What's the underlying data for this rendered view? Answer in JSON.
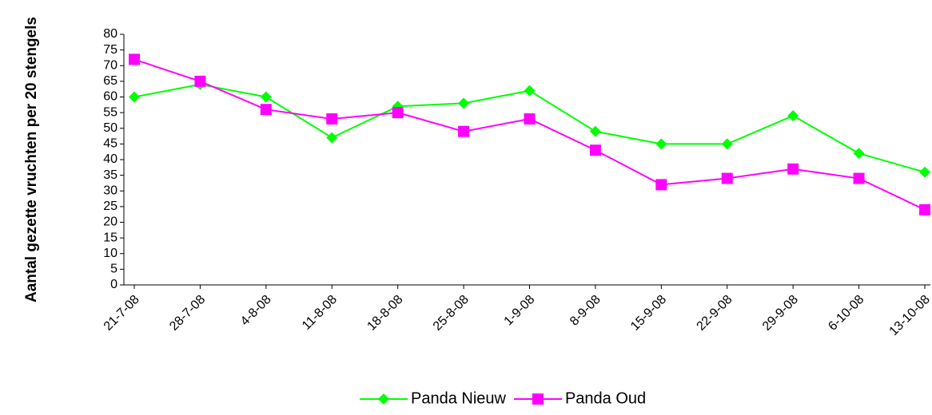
{
  "chart_data": {
    "type": "line",
    "y_label": "Aantal gezette vruchten per 20 stengels",
    "categories": [
      "21-7-08",
      "28-7-08",
      "4-8-08",
      "11-8-08",
      "18-8-08",
      "25-8-08",
      "1-9-08",
      "8-9-08",
      "15-9-08",
      "22-9-08",
      "29-9-08",
      "6-10-08",
      "13-10-08"
    ],
    "series": [
      {
        "name": "Panda Nieuw",
        "color": "#00ff00",
        "marker": "diamond",
        "values": [
          60,
          64,
          60,
          47,
          57,
          58,
          62,
          49,
          45,
          45,
          54,
          42,
          36
        ]
      },
      {
        "name": "Panda Oud",
        "color": "#ff00ff",
        "marker": "square",
        "values": [
          72,
          65,
          56,
          53,
          55,
          49,
          53,
          43,
          32,
          34,
          37,
          34,
          24
        ]
      }
    ],
    "ylim": [
      0,
      80
    ],
    "yticks": [
      0,
      5,
      10,
      15,
      20,
      25,
      30,
      35,
      40,
      45,
      50,
      55,
      60,
      65,
      70,
      75,
      80
    ],
    "grid": false,
    "legend": "bottom"
  }
}
